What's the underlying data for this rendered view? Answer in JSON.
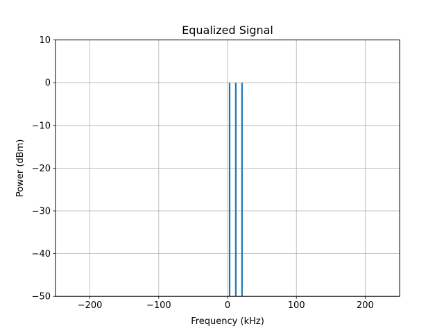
{
  "chart_data": {
    "type": "line",
    "title": "Equalized Signal",
    "xlabel": "Frequency (kHz)",
    "ylabel": "Power (dBm)",
    "xlim": [
      -250,
      250
    ],
    "ylim": [
      -50,
      10
    ],
    "xticks": [
      -200,
      -100,
      0,
      100,
      200
    ],
    "xtick_labels": [
      "−200",
      "−100",
      "0",
      "100",
      "200"
    ],
    "yticks": [
      10,
      0,
      -10,
      -20,
      -30,
      -40,
      -50
    ],
    "ytick_labels": [
      "10",
      "0",
      "−10",
      "−20",
      "−30",
      "−40",
      "−50"
    ],
    "grid": true,
    "series_color": "#1f77b4",
    "series": [
      {
        "spikes": [
          {
            "x": 3,
            "y_top": 0,
            "y_bottom": -50
          },
          {
            "x": 12,
            "y_top": 0,
            "y_bottom": -50
          },
          {
            "x": 21,
            "y_top": 0,
            "y_bottom": -50
          }
        ]
      }
    ]
  }
}
